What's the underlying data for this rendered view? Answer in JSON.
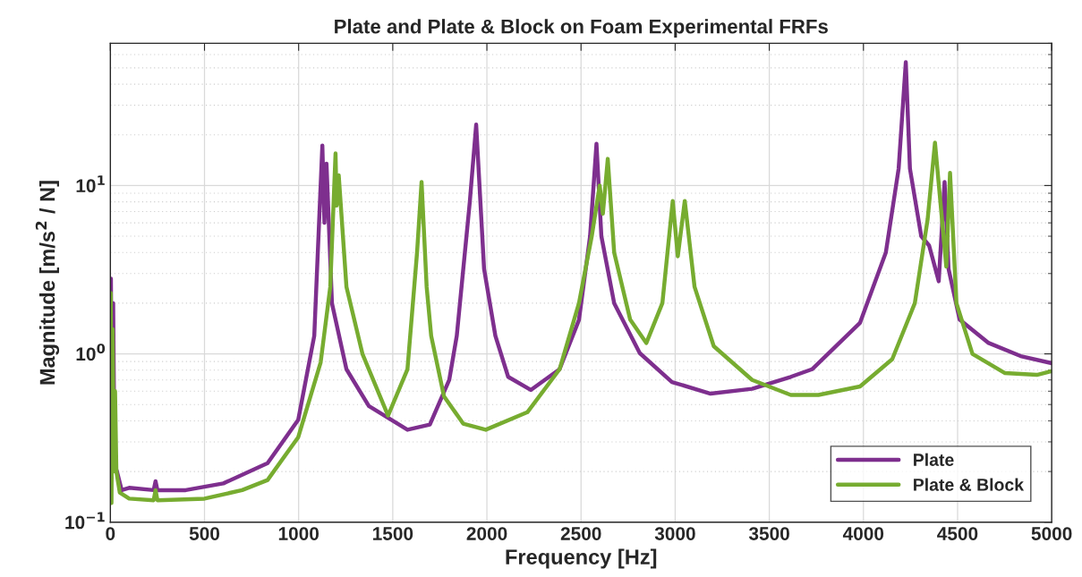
{
  "chart_data": {
    "type": "line",
    "title": "Plate and Plate & Block on Foam Experimental FRFs",
    "xlabel": "Frequency [Hz]",
    "ylabel": "Magnitude [m/s$^{2}$ / N]",
    "xlim": [
      0,
      5000
    ],
    "xticks": [
      0,
      500,
      1000,
      1500,
      2000,
      2500,
      3000,
      3500,
      4000,
      4500,
      5000
    ],
    "ylim": [
      0.1,
      70
    ],
    "yticks": [
      {
        "value": 0.1,
        "label": "10$^{−1}$"
      },
      {
        "value": 1,
        "label": "10$^{0}$"
      },
      {
        "value": 10,
        "label": "10$^{1}$"
      }
    ],
    "log": "y",
    "grid": true,
    "legend": "bottom right",
    "line_style": "solid",
    "marker": "none",
    "series": [
      {
        "name": "Plate",
        "color": "#7e2f8e",
        "x": [
          0,
          3,
          8,
          15,
          22,
          35,
          60,
          100,
          230,
          240,
          250,
          400,
          600,
          835,
          998,
          1083,
          1126,
          1137,
          1148,
          1177,
          1254,
          1373,
          1578,
          1697,
          1800,
          1840,
          1909,
          1943,
          1985,
          2045,
          2113,
          2233,
          2386,
          2489,
          2548,
          2582,
          2608,
          2676,
          2812,
          2983,
          3188,
          3409,
          3614,
          3727,
          3982,
          4119,
          4187,
          4225,
          4247,
          4307,
          4349,
          4400,
          4431,
          4452,
          4511,
          4665,
          4835,
          5000
        ],
        "values": [
          0.2,
          2.8,
          0.3,
          2.0,
          0.22,
          0.2,
          0.155,
          0.16,
          0.155,
          0.175,
          0.155,
          0.155,
          0.17,
          0.224,
          0.406,
          1.28,
          17.3,
          6.0,
          13.5,
          2.0,
          0.81,
          0.49,
          0.354,
          0.38,
          0.7,
          1.28,
          7.95,
          23,
          3.2,
          1.28,
          0.73,
          0.61,
          0.81,
          1.59,
          5.0,
          17.7,
          5.0,
          2.0,
          1.01,
          0.68,
          0.58,
          0.62,
          0.73,
          0.81,
          1.53,
          4.0,
          12.6,
          54,
          12.6,
          5.0,
          4.4,
          2.7,
          10.5,
          3.2,
          1.6,
          1.16,
          0.97,
          0.88
        ]
      },
      {
        "name": "Plate & Block",
        "color": "#77ac30",
        "x": [
          0,
          2,
          6,
          12,
          18,
          25,
          32,
          50,
          100,
          230,
          240,
          250,
          500,
          700,
          835,
          998,
          1117,
          1168,
          1196,
          1202,
          1213,
          1254,
          1339,
          1475,
          1578,
          1629,
          1653,
          1680,
          1704,
          1772,
          1874,
          1994,
          2215,
          2386,
          2489,
          2557,
          2599,
          2616,
          2642,
          2676,
          2761,
          2847,
          2932,
          2987,
          3014,
          3051,
          3103,
          3205,
          3409,
          3614,
          3761,
          3982,
          4153,
          4273,
          4341,
          4380,
          4440,
          4460,
          4494,
          4579,
          4750,
          4921,
          5000
        ],
        "values": [
          0.13,
          2.3,
          0.13,
          1.4,
          0.2,
          0.6,
          0.2,
          0.15,
          0.138,
          0.135,
          0.155,
          0.135,
          0.138,
          0.155,
          0.178,
          0.32,
          0.89,
          2.5,
          15.5,
          7.6,
          11.5,
          2.5,
          1.0,
          0.43,
          0.81,
          4.0,
          10.5,
          2.5,
          1.28,
          0.56,
          0.385,
          0.354,
          0.45,
          0.81,
          2.0,
          5.0,
          10,
          6.8,
          14.4,
          4.0,
          1.6,
          1.16,
          2.0,
          8.1,
          3.8,
          8.1,
          2.5,
          1.11,
          0.7,
          0.57,
          0.57,
          0.64,
          0.93,
          2.0,
          6.3,
          18,
          3.3,
          11.9,
          2.0,
          1.0,
          0.77,
          0.75,
          0.79
        ]
      }
    ]
  }
}
